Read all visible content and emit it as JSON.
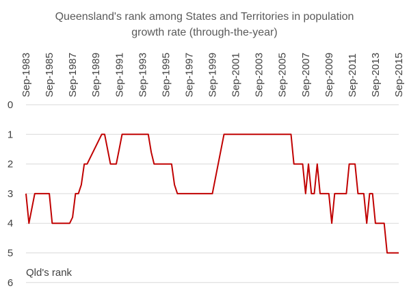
{
  "chart_data": {
    "type": "line",
    "title": [
      "Queensland's rank among States and Territories in population",
      "growth rate (through-the-year)"
    ],
    "ylabel": "Qld's rank",
    "xlabel": "",
    "x_axis_position": "top",
    "y_inverted": true,
    "ylim": [
      0,
      6
    ],
    "yticks": [
      "0",
      "1",
      "2",
      "3",
      "4",
      "5",
      "6"
    ],
    "grid": "horizontal",
    "xlim": [
      "Sep-1983",
      "Sep-2015"
    ],
    "xticks": [
      "Sep-1983",
      "Sep-1985",
      "Sep-1987",
      "Sep-1989",
      "Sep-1991",
      "Sep-1993",
      "Sep-1995",
      "Sep-1997",
      "Sep-1999",
      "Sep-2001",
      "Sep-2003",
      "Sep-2005",
      "Sep-2007",
      "Sep-2009",
      "Sep-2011",
      "Sep-2013",
      "Sep-2015"
    ],
    "series": [
      {
        "color": "#c00000",
        "x": [
          "Sep-1983",
          "Dec-1983",
          "Jun-1984",
          "Sep-1985",
          "Dec-1985",
          "Jun-1987",
          "Sep-1987",
          "Dec-1987",
          "Mar-1988",
          "Jun-1988",
          "Sep-1988",
          "Dec-1988",
          "Mar-1990",
          "Jun-1990",
          "Dec-1990",
          "Mar-1991",
          "Jun-1991",
          "Sep-1991",
          "Dec-1991",
          "Mar-1994",
          "Jun-1994",
          "Sep-1994",
          "Dec-1994",
          "Mar-1996",
          "Jun-1996",
          "Sep-1996",
          "Sep-1999",
          "Sep-2000",
          "Mar-2006",
          "Jun-2006",
          "Sep-2006",
          "Jun-2007",
          "Sep-2007",
          "Dec-2007",
          "Mar-2008",
          "Jun-2008",
          "Sep-2008",
          "Dec-2008",
          "Mar-2009",
          "Sep-2009",
          "Dec-2009",
          "Mar-2010",
          "Sep-2010",
          "Dec-2010",
          "Mar-2011",
          "Jun-2011",
          "Dec-2011",
          "Mar-2012",
          "Jun-2012",
          "Sep-2012",
          "Dec-2012",
          "Mar-2013",
          "Jun-2013",
          "Sep-2013",
          "Dec-2013",
          "Mar-2014",
          "Jun-2014",
          "Sep-2014",
          "Dec-2014",
          "Mar-2015",
          "Jun-2015",
          "Sep-2015"
        ],
        "values": [
          3,
          4,
          3,
          3,
          4,
          4,
          3.8,
          3,
          3,
          2.7,
          2,
          2,
          1,
          1,
          2,
          2,
          2,
          1.5,
          1,
          1,
          1.6,
          2,
          2,
          2,
          2.7,
          3,
          3,
          1,
          1,
          1,
          2,
          2,
          3,
          2,
          3,
          3,
          2,
          3,
          3,
          3,
          4,
          3,
          3,
          3,
          3,
          2,
          2,
          3,
          3,
          3,
          4,
          3,
          3,
          4,
          4,
          4,
          4,
          5,
          5,
          5,
          5,
          5
        ]
      }
    ]
  }
}
